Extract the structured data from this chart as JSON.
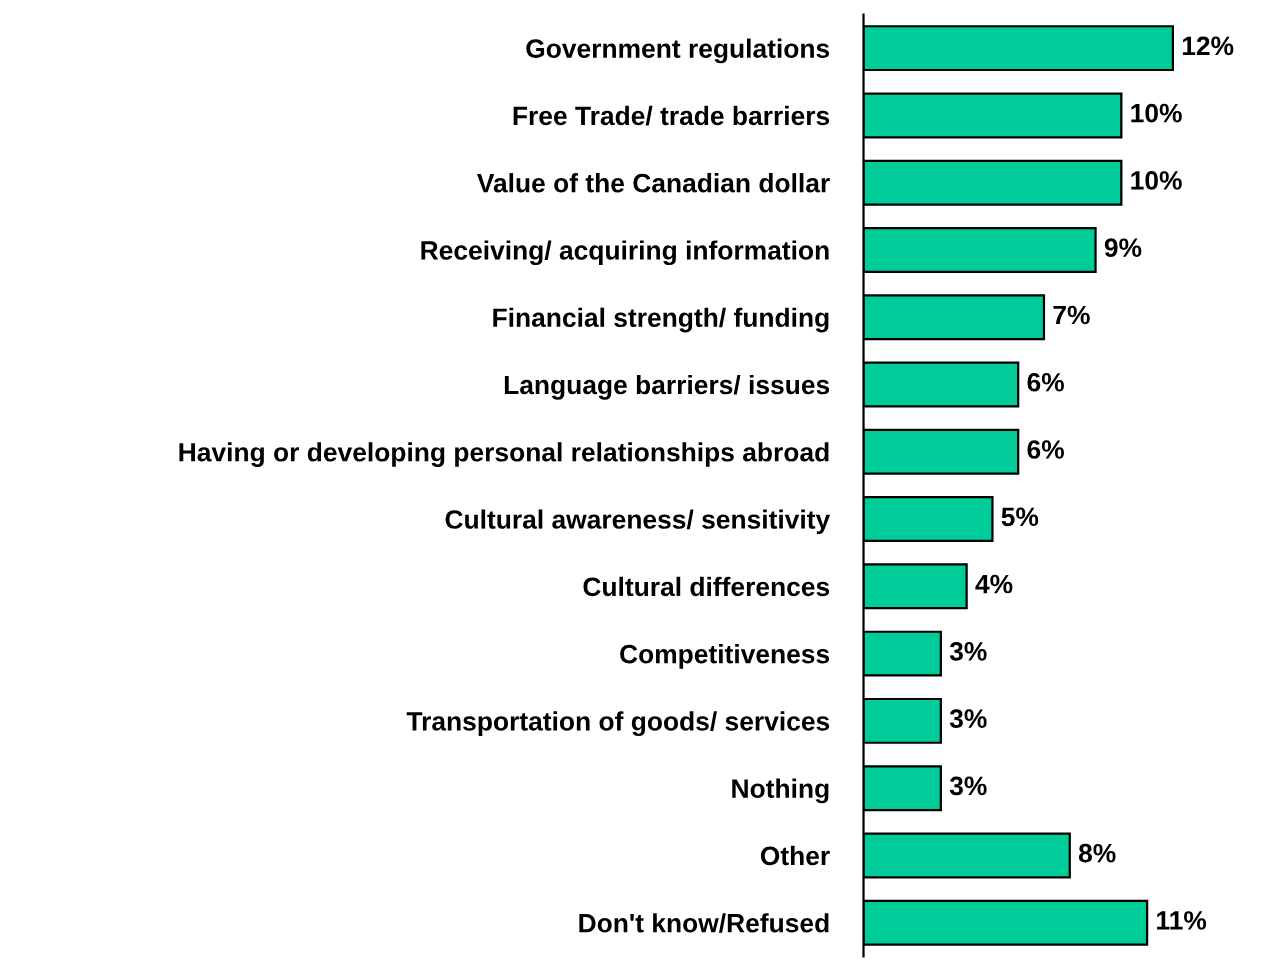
{
  "chart_data": {
    "type": "bar",
    "orientation": "horizontal",
    "categories": [
      "Government regulations",
      "Free Trade/ trade barriers",
      "Value of the Canadian dollar",
      "Receiving/ acquiring information",
      "Financial strength/ funding",
      "Language barriers/ issues",
      "Having or developing personal relationships abroad",
      "Cultural awareness/ sensitivity",
      "Cultural differences",
      "Competitiveness",
      "Transportation of goods/ services",
      "Nothing",
      "Other",
      "Don't know/Refused"
    ],
    "values": [
      12,
      10,
      10,
      9,
      7,
      6,
      6,
      5,
      4,
      3,
      3,
      3,
      8,
      11
    ],
    "value_labels": [
      "12%",
      "10%",
      "10%",
      "9%",
      "7%",
      "6%",
      "6%",
      "5%",
      "4%",
      "3%",
      "3%",
      "3%",
      "8%",
      "11%"
    ],
    "color": "#00cc99"
  }
}
